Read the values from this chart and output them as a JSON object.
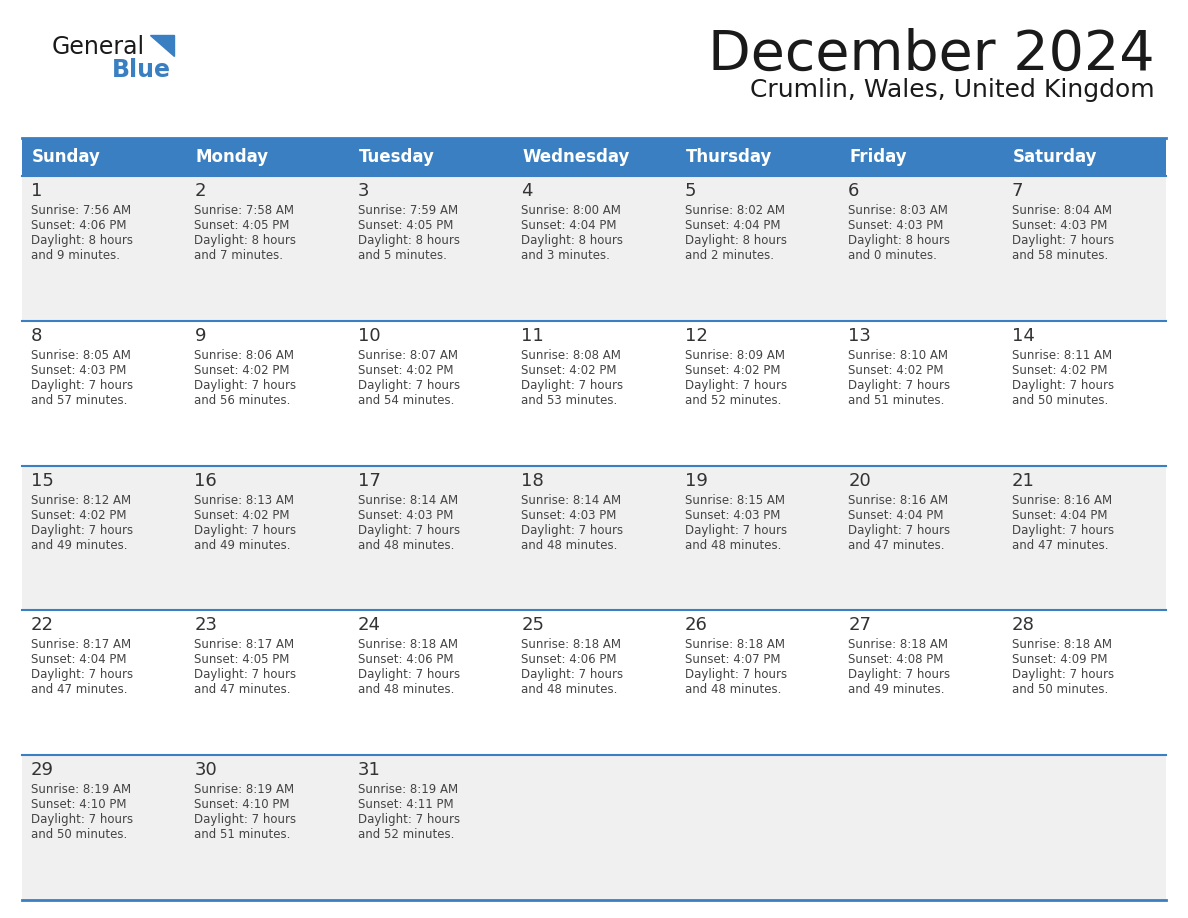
{
  "title": "December 2024",
  "subtitle": "Crumlin, Wales, United Kingdom",
  "header_bg_color": "#3A7FC1",
  "header_text_color": "#FFFFFF",
  "border_color": "#3A7FC1",
  "days_of_week": [
    "Sunday",
    "Monday",
    "Tuesday",
    "Wednesday",
    "Thursday",
    "Friday",
    "Saturday"
  ],
  "weeks": [
    [
      {
        "day": 1,
        "sunrise": "7:56 AM",
        "sunset": "4:06 PM",
        "daylight": "8 hours and 9 minutes."
      },
      {
        "day": 2,
        "sunrise": "7:58 AM",
        "sunset": "4:05 PM",
        "daylight": "8 hours and 7 minutes."
      },
      {
        "day": 3,
        "sunrise": "7:59 AM",
        "sunset": "4:05 PM",
        "daylight": "8 hours and 5 minutes."
      },
      {
        "day": 4,
        "sunrise": "8:00 AM",
        "sunset": "4:04 PM",
        "daylight": "8 hours and 3 minutes."
      },
      {
        "day": 5,
        "sunrise": "8:02 AM",
        "sunset": "4:04 PM",
        "daylight": "8 hours and 2 minutes."
      },
      {
        "day": 6,
        "sunrise": "8:03 AM",
        "sunset": "4:03 PM",
        "daylight": "8 hours and 0 minutes."
      },
      {
        "day": 7,
        "sunrise": "8:04 AM",
        "sunset": "4:03 PM",
        "daylight": "7 hours and 58 minutes."
      }
    ],
    [
      {
        "day": 8,
        "sunrise": "8:05 AM",
        "sunset": "4:03 PM",
        "daylight": "7 hours and 57 minutes."
      },
      {
        "day": 9,
        "sunrise": "8:06 AM",
        "sunset": "4:02 PM",
        "daylight": "7 hours and 56 minutes."
      },
      {
        "day": 10,
        "sunrise": "8:07 AM",
        "sunset": "4:02 PM",
        "daylight": "7 hours and 54 minutes."
      },
      {
        "day": 11,
        "sunrise": "8:08 AM",
        "sunset": "4:02 PM",
        "daylight": "7 hours and 53 minutes."
      },
      {
        "day": 12,
        "sunrise": "8:09 AM",
        "sunset": "4:02 PM",
        "daylight": "7 hours and 52 minutes."
      },
      {
        "day": 13,
        "sunrise": "8:10 AM",
        "sunset": "4:02 PM",
        "daylight": "7 hours and 51 minutes."
      },
      {
        "day": 14,
        "sunrise": "8:11 AM",
        "sunset": "4:02 PM",
        "daylight": "7 hours and 50 minutes."
      }
    ],
    [
      {
        "day": 15,
        "sunrise": "8:12 AM",
        "sunset": "4:02 PM",
        "daylight": "7 hours and 49 minutes."
      },
      {
        "day": 16,
        "sunrise": "8:13 AM",
        "sunset": "4:02 PM",
        "daylight": "7 hours and 49 minutes."
      },
      {
        "day": 17,
        "sunrise": "8:14 AM",
        "sunset": "4:03 PM",
        "daylight": "7 hours and 48 minutes."
      },
      {
        "day": 18,
        "sunrise": "8:14 AM",
        "sunset": "4:03 PM",
        "daylight": "7 hours and 48 minutes."
      },
      {
        "day": 19,
        "sunrise": "8:15 AM",
        "sunset": "4:03 PM",
        "daylight": "7 hours and 48 minutes."
      },
      {
        "day": 20,
        "sunrise": "8:16 AM",
        "sunset": "4:04 PM",
        "daylight": "7 hours and 47 minutes."
      },
      {
        "day": 21,
        "sunrise": "8:16 AM",
        "sunset": "4:04 PM",
        "daylight": "7 hours and 47 minutes."
      }
    ],
    [
      {
        "day": 22,
        "sunrise": "8:17 AM",
        "sunset": "4:04 PM",
        "daylight": "7 hours and 47 minutes."
      },
      {
        "day": 23,
        "sunrise": "8:17 AM",
        "sunset": "4:05 PM",
        "daylight": "7 hours and 47 minutes."
      },
      {
        "day": 24,
        "sunrise": "8:18 AM",
        "sunset": "4:06 PM",
        "daylight": "7 hours and 48 minutes."
      },
      {
        "day": 25,
        "sunrise": "8:18 AM",
        "sunset": "4:06 PM",
        "daylight": "7 hours and 48 minutes."
      },
      {
        "day": 26,
        "sunrise": "8:18 AM",
        "sunset": "4:07 PM",
        "daylight": "7 hours and 48 minutes."
      },
      {
        "day": 27,
        "sunrise": "8:18 AM",
        "sunset": "4:08 PM",
        "daylight": "7 hours and 49 minutes."
      },
      {
        "day": 28,
        "sunrise": "8:18 AM",
        "sunset": "4:09 PM",
        "daylight": "7 hours and 50 minutes."
      }
    ],
    [
      {
        "day": 29,
        "sunrise": "8:19 AM",
        "sunset": "4:10 PM",
        "daylight": "7 hours and 50 minutes."
      },
      {
        "day": 30,
        "sunrise": "8:19 AM",
        "sunset": "4:10 PM",
        "daylight": "7 hours and 51 minutes."
      },
      {
        "day": 31,
        "sunrise": "8:19 AM",
        "sunset": "4:11 PM",
        "daylight": "7 hours and 52 minutes."
      },
      null,
      null,
      null,
      null
    ]
  ]
}
